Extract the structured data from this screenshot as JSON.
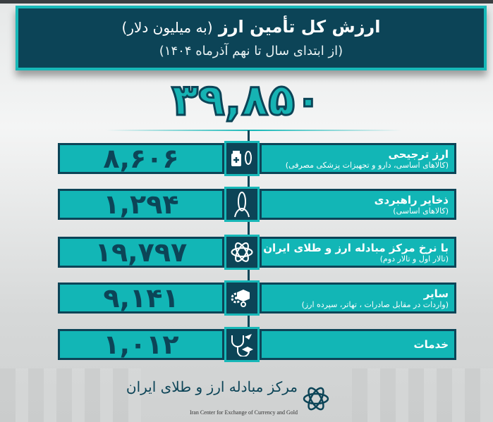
{
  "header": {
    "title": "ارزش کل تأمین ارز",
    "unit": "(به میلیون دلار)",
    "subtitle": "(از ابتدای سال تا نهم آذرماه ۱۴۰۴)"
  },
  "total": "۳۹,۸۵۰",
  "rows": [
    {
      "value": "۸,۶۰۶",
      "label": "ارز ترجیحی",
      "sub": "(کالاهای اساسی، دارو و تجهیزات پزشکی مصرفی)",
      "icon": "medicine-corn-icon"
    },
    {
      "value": "۱,۲۹۴",
      "label": "ذخایر راهبردی",
      "sub": "(کالاهای اساسی)",
      "icon": "corn-icon"
    },
    {
      "value": "۱۹,۷۹۷",
      "label": "با نرخ مرکز مبادله ارز و طلای ایران",
      "sub": "(تالار اول و تالار دوم)",
      "icon": "exchange-center-logo-icon"
    },
    {
      "value": "۹,۱۴۱",
      "label": "سایر",
      "sub": "(واردات در مقابل صادرات ، تهاتر، سپرده ارز)",
      "icon": "gears-box-icon"
    },
    {
      "value": "۱,۰۱۲",
      "label": "خدمات",
      "sub": "",
      "icon": "services-icon"
    }
  ],
  "footer": {
    "logo_fa": "مرکز مبادله ارز و طلای ایران",
    "logo_en": "Iran Center for Exchange of Currency and Gold"
  },
  "colors": {
    "teal": "#12b6b6",
    "dark": "#0c4457"
  }
}
